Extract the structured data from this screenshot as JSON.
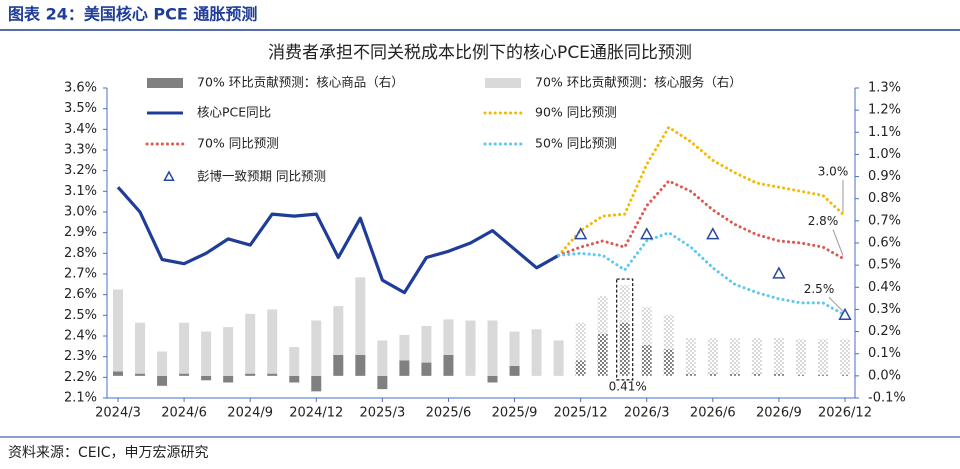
{
  "header": {
    "title": "图表 24：美国核心 PCE 通胀预测"
  },
  "footer": {
    "source": "资料来源：CEIC，申万宏源研究"
  },
  "chart_data": {
    "type": "combo",
    "title": "消费者承担不同关税成本比例下的核心PCE通胀同比预测",
    "categories": [
      "2024/3",
      null,
      null,
      "2024/6",
      null,
      null,
      "2024/9",
      null,
      null,
      "2024/12",
      null,
      null,
      "2025/3",
      null,
      null,
      "2025/6",
      null,
      null,
      "2025/9",
      null,
      null,
      "2025/12",
      null,
      null,
      "2026/3",
      null,
      null,
      "2026/6",
      null,
      null,
      "2026/9",
      null,
      null,
      "2026/12"
    ],
    "ylim": [
      2.1,
      3.6
    ],
    "yticks": [
      {
        "value": 2.1,
        "label": "2.1%"
      },
      {
        "value": 2.2,
        "label": "2.2%"
      },
      {
        "value": 2.3,
        "label": "2.3%"
      },
      {
        "value": 2.4,
        "label": "2.4%"
      },
      {
        "value": 2.5,
        "label": "2.5%"
      },
      {
        "value": 2.6,
        "label": "2.6%"
      },
      {
        "value": 2.7,
        "label": "2.7%"
      },
      {
        "value": 2.8,
        "label": "2.8%"
      },
      {
        "value": 2.9,
        "label": "2.9%"
      },
      {
        "value": 3.0,
        "label": "3.0%"
      },
      {
        "value": 3.1,
        "label": "3.1%"
      },
      {
        "value": 3.2,
        "label": "3.2%"
      },
      {
        "value": 3.3,
        "label": "3.3%"
      },
      {
        "value": 3.4,
        "label": "3.4%"
      },
      {
        "value": 3.5,
        "label": "3.5%"
      },
      {
        "value": 3.6,
        "label": "3.6%"
      }
    ],
    "y2lim": [
      -0.1,
      1.3
    ],
    "y2ticks": [
      {
        "value": -0.1,
        "label": "-0.1%"
      },
      {
        "value": 0.0,
        "label": "0.0%"
      },
      {
        "value": 0.1,
        "label": "0.1%"
      },
      {
        "value": 0.2,
        "label": "0.2%"
      },
      {
        "value": 0.3,
        "label": "0.3%"
      },
      {
        "value": 0.4,
        "label": "0.4%"
      },
      {
        "value": 0.5,
        "label": "0.5%"
      },
      {
        "value": 0.6,
        "label": "0.6%"
      },
      {
        "value": 0.7,
        "label": "0.7%"
      },
      {
        "value": 0.8,
        "label": "0.8%"
      },
      {
        "value": 0.9,
        "label": "0.9%"
      },
      {
        "value": 1.0,
        "label": "1.0%"
      },
      {
        "value": 1.1,
        "label": "1.1%"
      },
      {
        "value": 1.2,
        "label": "1.2%"
      },
      {
        "value": 1.3,
        "label": "1.3%"
      }
    ],
    "grid": false,
    "series": [
      {
        "name": "70% 环比贡献预测：核心商品（右）",
        "type": "bar",
        "axis": "y2",
        "color": "#808080",
        "values": [
          0.02,
          0.01,
          -0.045,
          0.01,
          -0.02,
          -0.03,
          0.01,
          0.01,
          -0.03,
          -0.07,
          0.095,
          0.095,
          -0.06,
          0.07,
          0.06,
          0.095,
          0.0,
          -0.03,
          0.045,
          0.0,
          0.0,
          0.07,
          0.19,
          0.24,
          0.14,
          0.12,
          0.01,
          0.01,
          0.01,
          0.01,
          0.01,
          0.005,
          0.005,
          0.005
        ]
      },
      {
        "name": "70% 环比贡献预测：核心服务（右）",
        "type": "bar",
        "axis": "y2",
        "color": "#d9d9d9",
        "values": [
          0.37,
          0.23,
          0.11,
          0.23,
          0.2,
          0.22,
          0.27,
          0.29,
          0.13,
          0.25,
          0.22,
          0.35,
          0.16,
          0.115,
          0.165,
          0.16,
          0.25,
          0.25,
          0.155,
          0.21,
          0.16,
          0.17,
          0.17,
          0.17,
          0.17,
          0.155,
          0.16,
          0.16,
          0.16,
          0.16,
          0.16,
          0.16,
          0.16,
          0.16
        ]
      },
      {
        "name": "核心PCE同比",
        "type": "line",
        "color": "#1f3c99",
        "dash": "solid",
        "values": [
          3.12,
          3.0,
          2.77,
          2.75,
          2.8,
          2.87,
          2.84,
          2.99,
          2.98,
          2.99,
          2.78,
          2.97,
          2.67,
          2.61,
          2.78,
          2.81,
          2.85,
          2.91,
          2.82,
          2.73,
          2.79,
          null,
          null,
          null,
          null,
          null,
          null,
          null,
          null,
          null,
          null,
          null,
          null,
          null
        ]
      },
      {
        "name": "90% 同比预测",
        "type": "line",
        "color": "#f5b800",
        "dash": "dotted",
        "values": [
          null,
          null,
          null,
          null,
          null,
          null,
          null,
          null,
          null,
          null,
          null,
          null,
          null,
          null,
          null,
          null,
          null,
          null,
          null,
          null,
          2.79,
          2.91,
          2.98,
          2.99,
          3.23,
          3.41,
          3.34,
          3.25,
          3.19,
          3.14,
          3.12,
          3.1,
          3.08,
          2.98
        ],
        "value_labels": [
          null,
          null,
          null,
          null,
          null,
          null,
          null,
          null,
          null,
          null,
          null,
          null,
          null,
          null,
          null,
          null,
          null,
          null,
          null,
          null,
          null,
          null,
          null,
          null,
          null,
          null,
          null,
          null,
          null,
          null,
          null,
          null,
          null,
          "3.0%"
        ]
      },
      {
        "name": "70% 同比预测",
        "type": "line",
        "color": "#e0584f",
        "dash": "dotted",
        "values": [
          null,
          null,
          null,
          null,
          null,
          null,
          null,
          null,
          null,
          null,
          null,
          null,
          null,
          null,
          null,
          null,
          null,
          null,
          null,
          null,
          2.79,
          2.83,
          2.86,
          2.83,
          3.03,
          3.15,
          3.1,
          3.01,
          2.94,
          2.89,
          2.86,
          2.85,
          2.83,
          2.77
        ],
        "value_labels": [
          null,
          null,
          null,
          null,
          null,
          null,
          null,
          null,
          null,
          null,
          null,
          null,
          null,
          null,
          null,
          null,
          null,
          null,
          null,
          null,
          null,
          null,
          null,
          null,
          null,
          null,
          null,
          null,
          null,
          null,
          null,
          null,
          null,
          "2.8%"
        ]
      },
      {
        "name": "50% 同比预测",
        "type": "line",
        "color": "#5bc8f0",
        "dash": "dotted",
        "values": [
          null,
          null,
          null,
          null,
          null,
          null,
          null,
          null,
          null,
          null,
          null,
          null,
          null,
          null,
          null,
          null,
          null,
          null,
          null,
          null,
          2.79,
          2.8,
          2.79,
          2.72,
          2.86,
          2.9,
          2.83,
          2.73,
          2.65,
          2.61,
          2.58,
          2.56,
          2.56,
          2.5
        ],
        "value_labels": [
          null,
          null,
          null,
          null,
          null,
          null,
          null,
          null,
          null,
          null,
          null,
          null,
          null,
          null,
          null,
          null,
          null,
          null,
          null,
          null,
          null,
          null,
          null,
          null,
          null,
          null,
          null,
          null,
          null,
          null,
          null,
          null,
          null,
          "2.5%"
        ]
      },
      {
        "name": "彭博一致预期 同比预测",
        "type": "scatter",
        "marker": "triangle",
        "color": "#2a4a9e",
        "values": [
          null,
          null,
          null,
          null,
          null,
          null,
          null,
          null,
          null,
          null,
          null,
          null,
          null,
          null,
          null,
          null,
          null,
          null,
          null,
          null,
          null,
          2.89,
          null,
          null,
          2.89,
          null,
          null,
          2.89,
          null,
          null,
          2.7,
          null,
          null,
          2.5
        ]
      }
    ],
    "annotations": [
      {
        "text": "0.41%"
      }
    ]
  }
}
